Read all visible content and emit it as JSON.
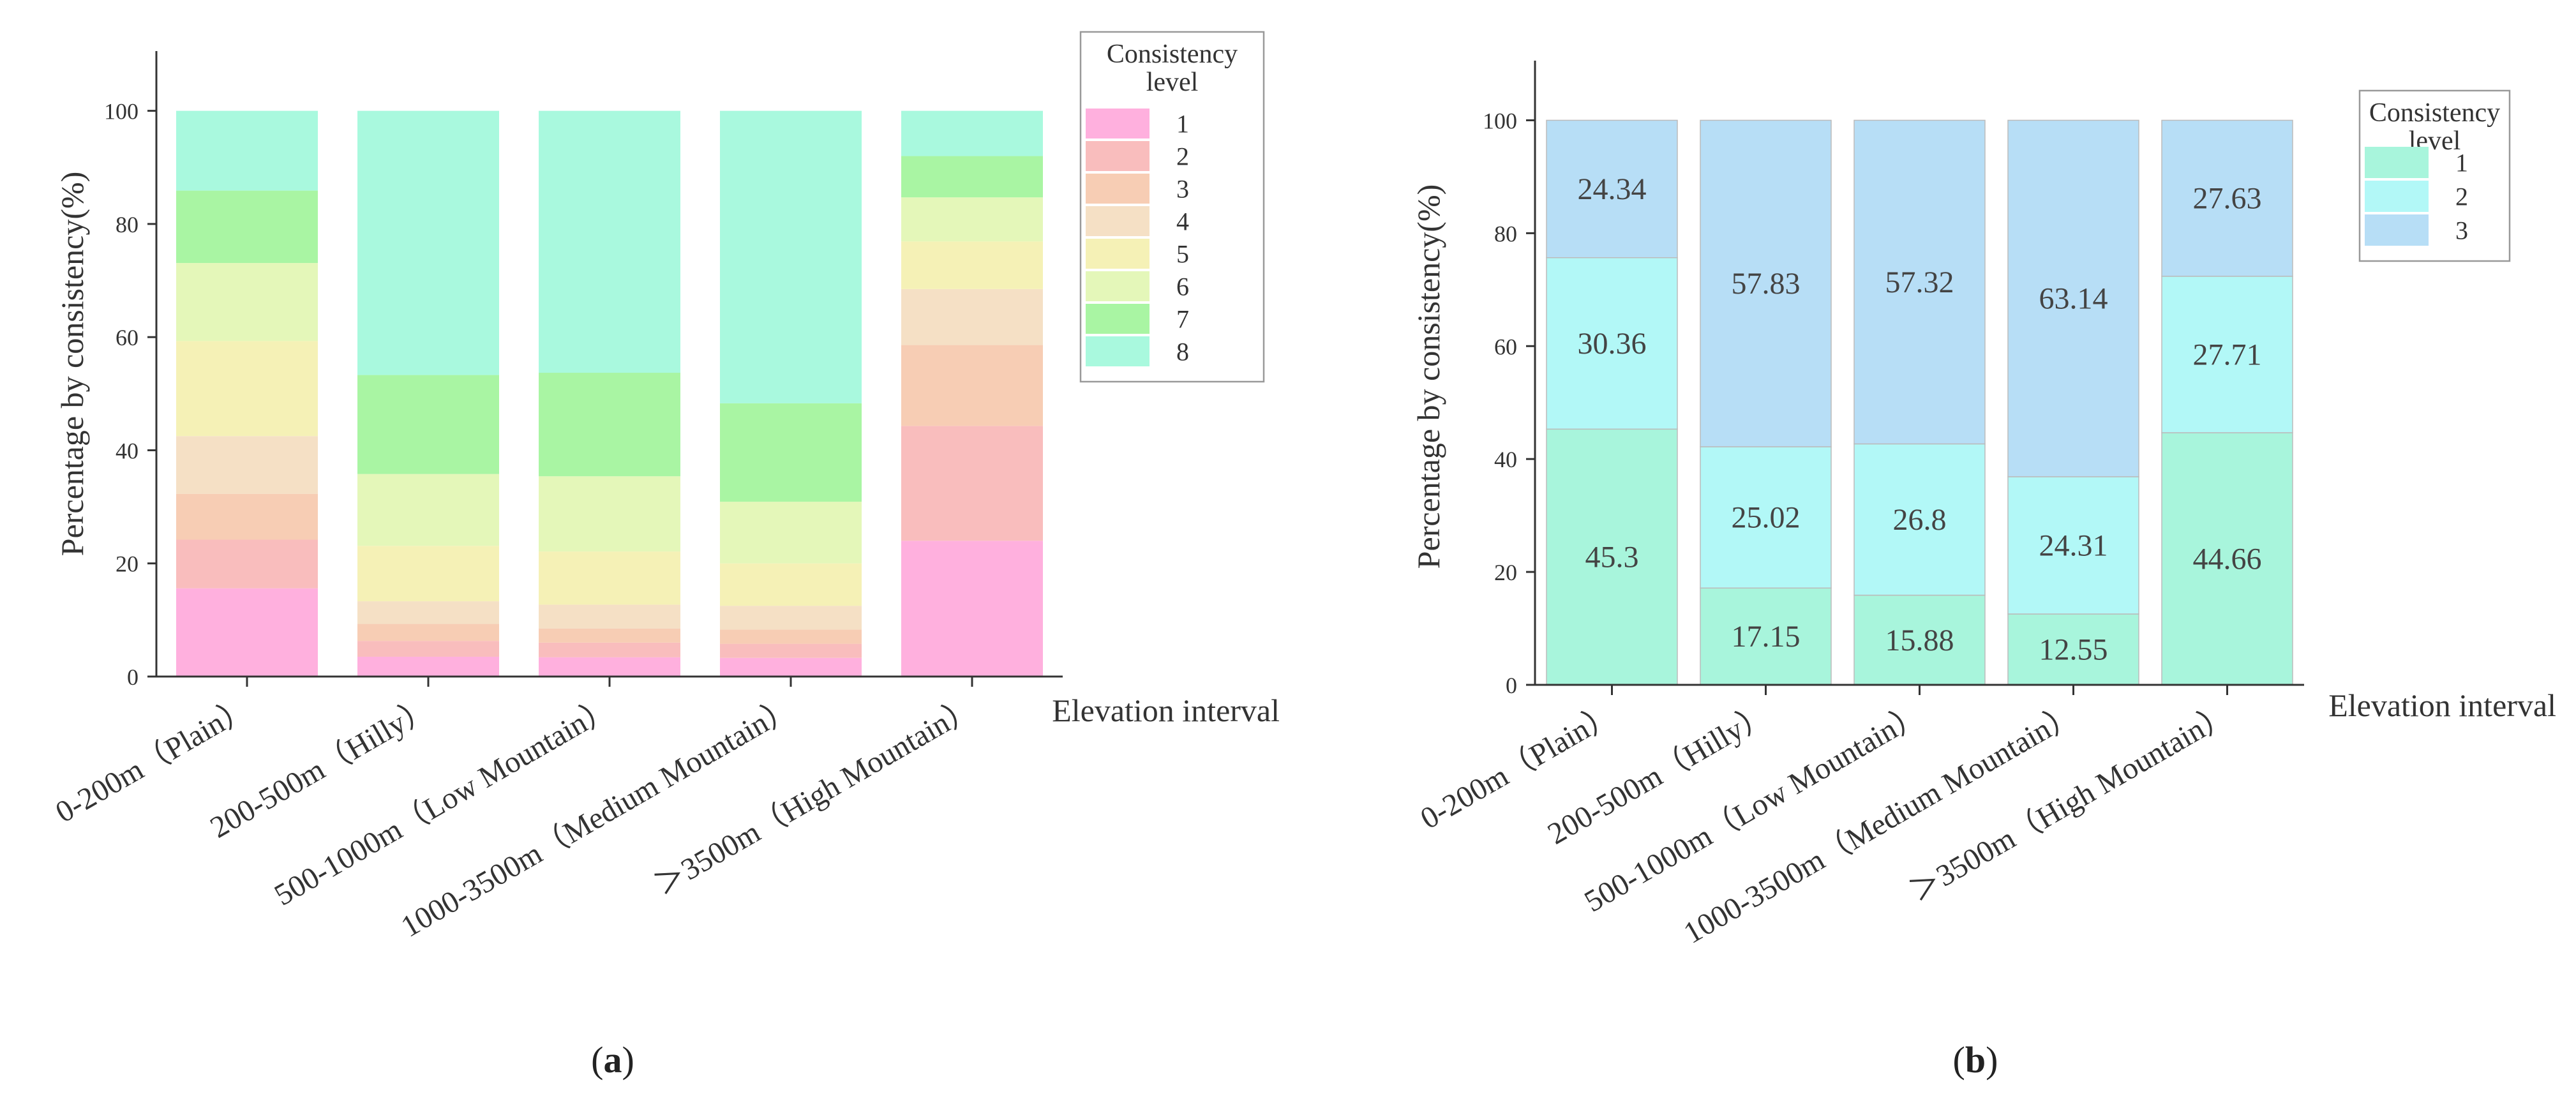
{
  "chart_data": [
    {
      "id": "a",
      "panel_label_open": "(",
      "panel_label_letter": "a",
      "panel_label_close": ")",
      "type": "bar",
      "stacked": true,
      "categories": [
        "0-200m（Plain）",
        "200-500m（Hilly）",
        "500-1000m（Low Mountain）",
        "1000-3500m（Medium Mountain）",
        "＞3500m（High Mountain）"
      ],
      "series": [
        {
          "name": "1",
          "color": "#FFB0DE",
          "values": [
            15.6,
            3.5,
            3.4,
            3.3,
            24.0
          ]
        },
        {
          "name": "2",
          "color": "#F9BDBD",
          "values": [
            8.6,
            2.8,
            2.6,
            2.5,
            20.3
          ]
        },
        {
          "name": "3",
          "color": "#F7CDB4",
          "values": [
            8.1,
            3.0,
            2.5,
            2.5,
            14.3
          ]
        },
        {
          "name": "4",
          "color": "#F5E0C5",
          "values": [
            10.2,
            4.0,
            4.2,
            4.2,
            9.9
          ]
        },
        {
          "name": "5",
          "color": "#F5F1B6",
          "values": [
            16.8,
            9.8,
            9.4,
            7.5,
            8.4
          ]
        },
        {
          "name": "6",
          "color": "#E4F7B9",
          "values": [
            13.8,
            12.7,
            13.3,
            10.9,
            7.8
          ]
        },
        {
          "name": "7",
          "color": "#A9F5A3",
          "values": [
            12.8,
            17.5,
            18.3,
            17.4,
            7.3
          ]
        },
        {
          "name": "8",
          "color": "#A9F9DE",
          "values": [
            14.1,
            46.7,
            46.3,
            51.7,
            8.0
          ]
        }
      ],
      "ylabel": "Percentage by consistency(%)",
      "xlabel": "Elevation interval",
      "ylim": [
        0,
        110
      ],
      "yticks": [
        0,
        20,
        40,
        60,
        80,
        100
      ],
      "legend_title": [
        "Consistency",
        "level"
      ],
      "legend_position": "top-right"
    },
    {
      "id": "b",
      "panel_label_open": "(",
      "panel_label_letter": "b",
      "panel_label_close": ")",
      "type": "bar",
      "stacked": true,
      "categories": [
        "0-200m（Plain）",
        "200-500m（Hilly）",
        "500-1000m（Low Mountain）",
        "1000-3500m（Medium Mountain）",
        "＞3500m（High Mountain）"
      ],
      "series": [
        {
          "name": "1",
          "color": "#A8F5DC",
          "values": [
            45.3,
            17.15,
            15.88,
            12.55,
            44.66
          ],
          "labels": [
            "45.3",
            "17.15",
            "15.88",
            "12.55",
            "44.66"
          ]
        },
        {
          "name": "2",
          "color": "#B2F8F7",
          "values": [
            30.36,
            25.02,
            26.8,
            24.31,
            27.71
          ],
          "labels": [
            "30.36",
            "25.02",
            "26.8",
            "24.31",
            "27.71"
          ]
        },
        {
          "name": "3",
          "color": "#B7DEF6",
          "values": [
            24.34,
            57.83,
            57.32,
            63.14,
            27.63
          ],
          "labels": [
            "24.34",
            "57.83",
            "57.32",
            "63.14",
            "27.63"
          ]
        }
      ],
      "ylabel": "Percentage by consistency(%)",
      "xlabel": "Elevation interval",
      "ylim": [
        0,
        110
      ],
      "yticks": [
        0,
        20,
        40,
        60,
        80,
        100
      ],
      "legend_title": [
        "Consistency",
        "level"
      ],
      "legend_position": "top-right"
    }
  ]
}
